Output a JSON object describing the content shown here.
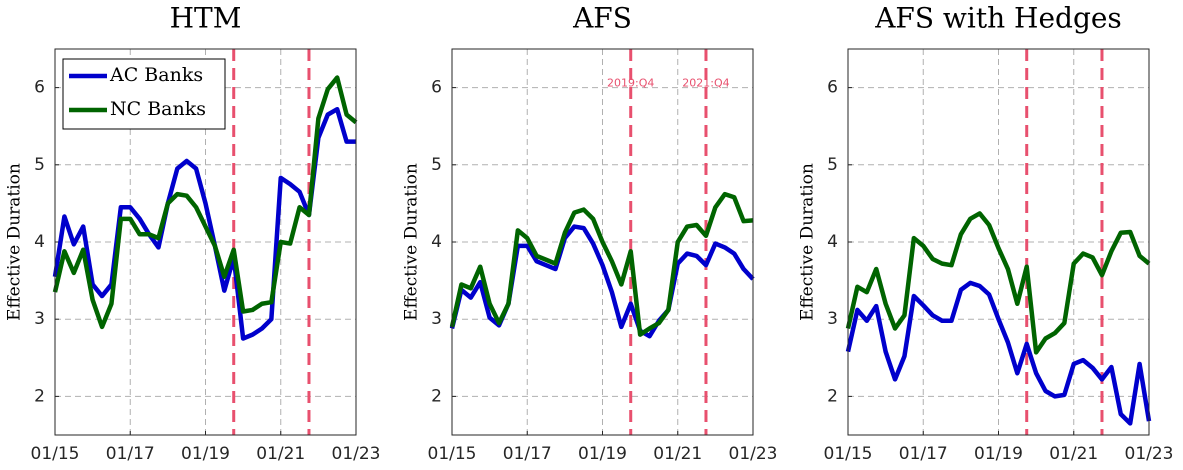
{
  "chart_data": [
    {
      "type": "line",
      "title": "HTM",
      "y_label": "Effective Duration",
      "x": [
        2015,
        2015.25,
        2015.5,
        2015.75,
        2016,
        2016.25,
        2016.5,
        2016.75,
        2017,
        2017.25,
        2017.5,
        2017.75,
        2018,
        2018.25,
        2018.5,
        2018.75,
        2019,
        2019.25,
        2019.5,
        2019.75,
        2020,
        2020.25,
        2020.5,
        2020.75,
        2021,
        2021.25,
        2021.5,
        2021.75,
        2022,
        2022.25,
        2022.5,
        2022.75,
        2023
      ],
      "series": [
        {
          "name": "AC Banks",
          "color": "#0000cc",
          "values": [
            3.55,
            4.33,
            3.97,
            4.2,
            3.45,
            3.3,
            3.45,
            4.45,
            4.45,
            4.3,
            4.1,
            3.93,
            4.5,
            4.95,
            5.05,
            4.95,
            4.5,
            3.95,
            3.37,
            3.8,
            2.75,
            2.8,
            2.88,
            3.0,
            4.83,
            4.75,
            4.65,
            4.35,
            5.35,
            5.65,
            5.72,
            5.3,
            5.3
          ]
        },
        {
          "name": "NC Banks",
          "color": "#006400",
          "values": [
            3.35,
            3.88,
            3.6,
            3.9,
            3.25,
            2.9,
            3.2,
            4.3,
            4.3,
            4.1,
            4.1,
            4.05,
            4.5,
            4.62,
            4.6,
            4.45,
            4.2,
            3.95,
            3.55,
            3.9,
            3.1,
            3.12,
            3.2,
            3.22,
            4.0,
            3.98,
            4.45,
            4.35,
            5.6,
            5.98,
            6.13,
            5.65,
            5.55
          ]
        }
      ],
      "xlim": [
        2015,
        2023
      ],
      "xticks": [
        {
          "value": 2015,
          "label": "01/15"
        },
        {
          "value": 2017,
          "label": "01/17"
        },
        {
          "value": 2019,
          "label": "01/19"
        },
        {
          "value": 2021,
          "label": "01/21"
        },
        {
          "value": 2023,
          "label": "01/23"
        }
      ],
      "ylim": [
        1.5,
        6.5
      ],
      "yticks": [
        2,
        3,
        4,
        5,
        6
      ],
      "grid": true,
      "reference_lines": {
        "x": [
          2019.75,
          2021.75
        ],
        "color": "#e8506e"
      },
      "legend": "upper left"
    },
    {
      "type": "line",
      "title": "AFS",
      "y_label": "Effective Duration",
      "x": [
        2015,
        2015.25,
        2015.5,
        2015.75,
        2016,
        2016.25,
        2016.5,
        2016.75,
        2017,
        2017.25,
        2017.5,
        2017.75,
        2018,
        2018.25,
        2018.5,
        2018.75,
        2019,
        2019.25,
        2019.5,
        2019.75,
        2020,
        2020.25,
        2020.5,
        2020.75,
        2021,
        2021.25,
        2021.5,
        2021.75,
        2022,
        2022.25,
        2022.5,
        2022.75,
        2023
      ],
      "series": [
        {
          "name": "AC Banks",
          "color": "#0000cc",
          "values": [
            2.88,
            3.38,
            3.28,
            3.48,
            3.02,
            2.92,
            3.2,
            3.95,
            3.95,
            3.75,
            3.7,
            3.65,
            4.05,
            4.2,
            4.18,
            3.98,
            3.7,
            3.35,
            2.9,
            3.2,
            2.85,
            2.78,
            2.98,
            3.12,
            3.72,
            3.85,
            3.82,
            3.7,
            3.98,
            3.93,
            3.85,
            3.65,
            3.52
          ]
        },
        {
          "name": "NC Banks",
          "color": "#006400",
          "values": [
            2.9,
            3.45,
            3.4,
            3.68,
            3.2,
            2.95,
            3.2,
            4.15,
            4.05,
            3.82,
            3.77,
            3.72,
            4.12,
            4.38,
            4.42,
            4.3,
            4.0,
            3.75,
            3.45,
            3.88,
            2.8,
            2.88,
            2.95,
            3.12,
            4.0,
            4.2,
            4.22,
            4.08,
            4.45,
            4.62,
            4.58,
            4.27,
            4.28
          ]
        }
      ],
      "xlim": [
        2015,
        2023
      ],
      "xticks": [
        {
          "value": 2015,
          "label": "01/15"
        },
        {
          "value": 2017,
          "label": "01/17"
        },
        {
          "value": 2019,
          "label": "01/19"
        },
        {
          "value": 2021,
          "label": "01/21"
        },
        {
          "value": 2023,
          "label": "01/23"
        }
      ],
      "ylim": [
        1.5,
        6.5
      ],
      "yticks": [
        2,
        3,
        4,
        5,
        6
      ],
      "grid": true,
      "reference_lines": {
        "x": [
          2019.75,
          2021.75
        ],
        "color": "#e8506e"
      },
      "annotations": [
        {
          "x": 2019.75,
          "y": 6.05,
          "text": "2019:Q4"
        },
        {
          "x": 2021.75,
          "y": 6.05,
          "text": "2021:Q4"
        }
      ]
    },
    {
      "type": "line",
      "title": "AFS with Hedges",
      "y_label": "Effective Duration",
      "x": [
        2015,
        2015.25,
        2015.5,
        2015.75,
        2016,
        2016.25,
        2016.5,
        2016.75,
        2017,
        2017.25,
        2017.5,
        2017.75,
        2018,
        2018.25,
        2018.5,
        2018.75,
        2019,
        2019.25,
        2019.5,
        2019.75,
        2020,
        2020.25,
        2020.5,
        2020.75,
        2021,
        2021.25,
        2021.5,
        2021.75,
        2022,
        2022.25,
        2022.5,
        2022.75,
        2023
      ],
      "series": [
        {
          "name": "AC Banks",
          "color": "#0000cc",
          "values": [
            2.58,
            3.12,
            2.98,
            3.17,
            2.58,
            2.22,
            2.52,
            3.3,
            3.18,
            3.05,
            2.98,
            2.98,
            3.38,
            3.47,
            3.43,
            3.32,
            3.0,
            2.7,
            2.3,
            2.68,
            2.3,
            2.07,
            2.0,
            2.02,
            2.42,
            2.47,
            2.37,
            2.22,
            2.38,
            1.77,
            1.65,
            2.42,
            1.68
          ]
        },
        {
          "name": "NC Banks",
          "color": "#006400",
          "values": [
            2.88,
            3.42,
            3.35,
            3.65,
            3.2,
            2.88,
            3.05,
            4.05,
            3.95,
            3.78,
            3.72,
            3.7,
            4.1,
            4.3,
            4.37,
            4.22,
            3.92,
            3.65,
            3.2,
            3.68,
            2.57,
            2.75,
            2.82,
            2.95,
            3.72,
            3.85,
            3.8,
            3.57,
            3.88,
            4.12,
            4.13,
            3.82,
            3.72
          ]
        }
      ],
      "xlim": [
        2015,
        2023
      ],
      "xticks": [
        {
          "value": 2015,
          "label": "01/15"
        },
        {
          "value": 2017,
          "label": "01/17"
        },
        {
          "value": 2019,
          "label": "01/19"
        },
        {
          "value": 2021,
          "label": "01/21"
        },
        {
          "value": 2023,
          "label": "01/23"
        }
      ],
      "ylim": [
        1.5,
        6.5
      ],
      "yticks": [
        2,
        3,
        4,
        5,
        6
      ],
      "grid": true,
      "reference_lines": {
        "x": [
          2019.75,
          2021.75
        ],
        "color": "#e8506e"
      }
    }
  ]
}
